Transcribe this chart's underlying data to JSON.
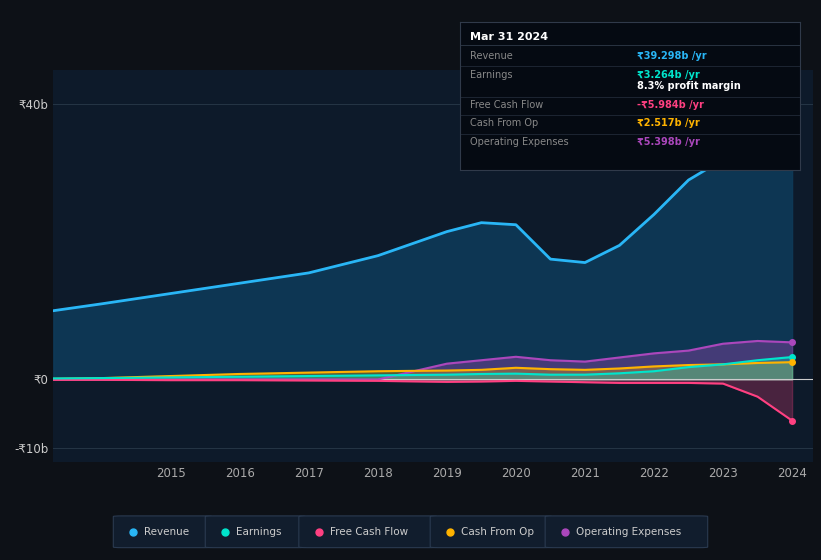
{
  "bg_color": "#0d1117",
  "plot_bg_color": "#0d1a2a",
  "years": [
    2013.3,
    2014.0,
    2015.0,
    2016.0,
    2017.0,
    2018.0,
    2019.0,
    2019.5,
    2020.0,
    2020.5,
    2021.0,
    2021.5,
    2022.0,
    2022.5,
    2023.0,
    2023.5,
    2024.0
  ],
  "revenue": [
    10.0,
    11.0,
    12.5,
    14.0,
    15.5,
    18.0,
    21.5,
    22.8,
    22.5,
    17.5,
    17.0,
    19.5,
    24.0,
    29.0,
    32.0,
    36.5,
    39.3
  ],
  "earnings": [
    0.15,
    0.2,
    0.3,
    0.4,
    0.5,
    0.6,
    0.7,
    0.8,
    0.85,
    0.7,
    0.7,
    0.9,
    1.2,
    1.8,
    2.2,
    2.8,
    3.264
  ],
  "free_cash_flow": [
    -0.05,
    -0.05,
    -0.1,
    -0.1,
    -0.15,
    -0.2,
    -0.35,
    -0.3,
    -0.2,
    -0.3,
    -0.4,
    -0.5,
    -0.5,
    -0.5,
    -0.6,
    -2.5,
    -5.984
  ],
  "cash_from_op": [
    0.1,
    0.2,
    0.5,
    0.8,
    1.0,
    1.2,
    1.3,
    1.4,
    1.7,
    1.5,
    1.4,
    1.6,
    1.9,
    2.1,
    2.2,
    2.4,
    2.517
  ],
  "operating_expenses": [
    0.0,
    0.0,
    0.0,
    0.0,
    0.0,
    0.0,
    2.3,
    2.8,
    3.3,
    2.8,
    2.6,
    3.2,
    3.8,
    4.2,
    5.2,
    5.6,
    5.398
  ],
  "revenue_color": "#29b6f6",
  "revenue_fill": "#0d3a58",
  "earnings_color": "#00e5cc",
  "free_cash_flow_color": "#ff4081",
  "cash_from_op_color": "#ffb300",
  "operating_expenses_color": "#ab47bc",
  "ylim": [
    -12,
    45
  ],
  "yticks": [
    -10,
    0,
    40
  ],
  "ytick_labels": [
    "-₹10b",
    "₹0",
    "₹40b"
  ],
  "xticks": [
    2015,
    2016,
    2017,
    2018,
    2019,
    2020,
    2021,
    2022,
    2023,
    2024
  ],
  "grid_color": "#253545",
  "legend_items": [
    "Revenue",
    "Earnings",
    "Free Cash Flow",
    "Cash From Op",
    "Operating Expenses"
  ],
  "legend_colors": [
    "#29b6f6",
    "#00e5cc",
    "#ff4081",
    "#ffb300",
    "#ab47bc"
  ],
  "tooltip_title": "Mar 31 2024",
  "tooltip_rows": [
    {
      "label": "Revenue",
      "value": "₹39.298b /yr",
      "value_color": "#29b6f6"
    },
    {
      "label": "Earnings",
      "value": "₹3.264b /yr",
      "value_color": "#00e5cc"
    },
    {
      "label": "",
      "value": "8.3% profit margin",
      "value_color": "#ffffff"
    },
    {
      "label": "Free Cash Flow",
      "value": "-₹5.984b /yr",
      "value_color": "#ff4081"
    },
    {
      "label": "Cash From Op",
      "value": "₹2.517b /yr",
      "value_color": "#ffb300"
    },
    {
      "label": "Operating Expenses",
      "value": "₹5.398b /yr",
      "value_color": "#ab47bc"
    }
  ],
  "tooltip_bg": "#050a12",
  "tooltip_border": "#303a4a",
  "tooltip_label_color": "#888888",
  "tooltip_title_color": "#ffffff"
}
